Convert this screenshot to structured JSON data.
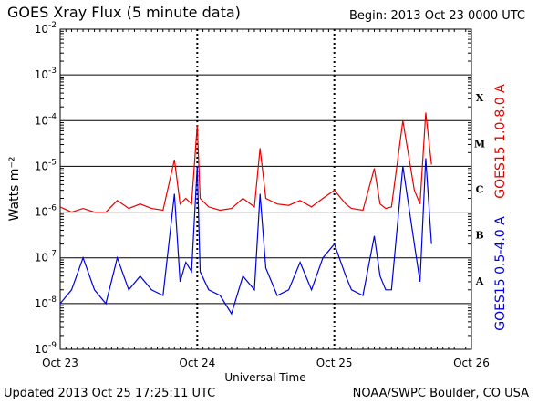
{
  "header": {
    "title": "GOES Xray Flux (5 minute data)",
    "begin": "Begin:  2013 Oct 23 0000 UTC"
  },
  "footer": {
    "updated": "Updated 2013 Oct 25 17:25:11 UTC",
    "credit": "NOAA/SWPC Boulder, CO USA"
  },
  "colors": {
    "long_channel": "#e80000",
    "short_channel": "#0000e0"
  },
  "chart_data": {
    "type": "line",
    "title": "GOES Xray Flux (5 minute data)",
    "xlabel": "Universal Time",
    "ylabel": "Watts m⁻²",
    "yscale": "log",
    "ylim": [
      1e-09,
      0.01
    ],
    "xlim": [
      "2013-10-23 00:00",
      "2013-10-26 00:00"
    ],
    "x_tick_labels": [
      "Oct 23",
      "Oct 24",
      "Oct 25",
      "Oct 26"
    ],
    "y_tick_labels": [
      {
        "base": "10",
        "exp": "-9"
      },
      {
        "base": "10",
        "exp": "-8"
      },
      {
        "base": "10",
        "exp": "-7"
      },
      {
        "base": "10",
        "exp": "-6"
      },
      {
        "base": "10",
        "exp": "-5"
      },
      {
        "base": "10",
        "exp": "-4"
      },
      {
        "base": "10",
        "exp": "-3"
      },
      {
        "base": "10",
        "exp": "-2"
      }
    ],
    "flare_classes": [
      {
        "label": "A",
        "level": 1e-08
      },
      {
        "label": "B",
        "level": 1e-07
      },
      {
        "label": "C",
        "level": 1e-06
      },
      {
        "label": "M",
        "level": 1e-05
      },
      {
        "label": "X",
        "level": 0.0001
      }
    ],
    "grid": true,
    "series": [
      {
        "name": "GOES15 1.0-8.0 A",
        "x": [
          "2013-10-23 00:00",
          "2013-10-23 02:00",
          "2013-10-23 04:00",
          "2013-10-23 06:00",
          "2013-10-23 08:00",
          "2013-10-23 10:00",
          "2013-10-23 12:00",
          "2013-10-23 14:00",
          "2013-10-23 16:00",
          "2013-10-23 18:00",
          "2013-10-23 20:00",
          "2013-10-23 21:00",
          "2013-10-23 22:00",
          "2013-10-23 23:00",
          "2013-10-24 00:00",
          "2013-10-24 00:30",
          "2013-10-24 02:00",
          "2013-10-24 04:00",
          "2013-10-24 06:00",
          "2013-10-24 08:00",
          "2013-10-24 10:00",
          "2013-10-24 11:00",
          "2013-10-24 12:00",
          "2013-10-24 14:00",
          "2013-10-24 16:00",
          "2013-10-24 18:00",
          "2013-10-24 20:00",
          "2013-10-24 22:00",
          "2013-10-25 00:00",
          "2013-10-25 02:00",
          "2013-10-25 03:00",
          "2013-10-25 05:00",
          "2013-10-25 07:00",
          "2013-10-25 08:00",
          "2013-10-25 09:00",
          "2013-10-25 10:00",
          "2013-10-25 12:00",
          "2013-10-25 14:00",
          "2013-10-25 15:00",
          "2013-10-25 16:00",
          "2013-10-25 17:00"
        ],
        "y": [
          1.3e-06,
          1e-06,
          1.2e-06,
          1e-06,
          1e-06,
          1.8e-06,
          1.2e-06,
          1.5e-06,
          1.2e-06,
          1.1e-06,
          1.4e-05,
          1.5e-06,
          2e-06,
          1.5e-06,
          8e-05,
          2e-06,
          1.3e-06,
          1.1e-06,
          1.2e-06,
          2e-06,
          1.3e-06,
          2.5e-05,
          2e-06,
          1.5e-06,
          1.4e-06,
          1.8e-06,
          1.3e-06,
          2e-06,
          3e-06,
          1.5e-06,
          1.2e-06,
          1.1e-06,
          9e-06,
          1.5e-06,
          1.2e-06,
          1.3e-06,
          0.0001,
          3e-06,
          1.5e-06,
          0.00015,
          1.1e-05
        ]
      },
      {
        "name": "GOES15 0.5-4.0 A",
        "x": [
          "2013-10-23 00:00",
          "2013-10-23 02:00",
          "2013-10-23 04:00",
          "2013-10-23 06:00",
          "2013-10-23 08:00",
          "2013-10-23 10:00",
          "2013-10-23 12:00",
          "2013-10-23 14:00",
          "2013-10-23 16:00",
          "2013-10-23 18:00",
          "2013-10-23 20:00",
          "2013-10-23 21:00",
          "2013-10-23 22:00",
          "2013-10-23 23:00",
          "2013-10-24 00:00",
          "2013-10-24 00:30",
          "2013-10-24 02:00",
          "2013-10-24 04:00",
          "2013-10-24 06:00",
          "2013-10-24 08:00",
          "2013-10-24 10:00",
          "2013-10-24 11:00",
          "2013-10-24 12:00",
          "2013-10-24 14:00",
          "2013-10-24 16:00",
          "2013-10-24 18:00",
          "2013-10-24 20:00",
          "2013-10-24 22:00",
          "2013-10-25 00:00",
          "2013-10-25 02:00",
          "2013-10-25 03:00",
          "2013-10-25 05:00",
          "2013-10-25 07:00",
          "2013-10-25 08:00",
          "2013-10-25 09:00",
          "2013-10-25 10:00",
          "2013-10-25 12:00",
          "2013-10-25 14:00",
          "2013-10-25 15:00",
          "2013-10-25 16:00",
          "2013-10-25 17:00"
        ],
        "y": [
          1e-08,
          2e-08,
          1e-07,
          2e-08,
          1e-08,
          1e-07,
          2e-08,
          4e-08,
          2e-08,
          1.5e-08,
          2.5e-06,
          3e-08,
          8e-08,
          5e-08,
          1e-05,
          5e-08,
          2e-08,
          1.5e-08,
          6e-09,
          4e-08,
          2e-08,
          2.5e-06,
          6e-08,
          1.5e-08,
          2e-08,
          8e-08,
          2e-08,
          1e-07,
          2e-07,
          4e-08,
          2e-08,
          1.5e-08,
          3e-07,
          4e-08,
          2e-08,
          2e-08,
          1e-05,
          2e-07,
          3e-08,
          1.5e-05,
          2e-07
        ]
      }
    ]
  }
}
